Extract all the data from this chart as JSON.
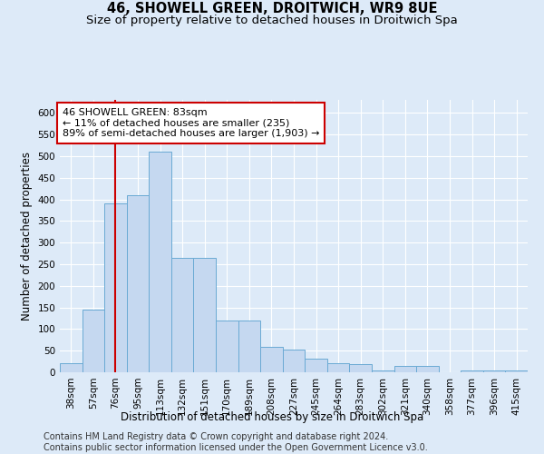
{
  "title": "46, SHOWELL GREEN, DROITWICH, WR9 8UE",
  "subtitle": "Size of property relative to detached houses in Droitwich Spa",
  "xlabel": "Distribution of detached houses by size in Droitwich Spa",
  "ylabel": "Number of detached properties",
  "footer_line1": "Contains HM Land Registry data © Crown copyright and database right 2024.",
  "footer_line2": "Contains public sector information licensed under the Open Government Licence v3.0.",
  "annotation_line1": "46 SHOWELL GREEN: 83sqm",
  "annotation_line2": "← 11% of detached houses are smaller (235)",
  "annotation_line3": "89% of semi-detached houses are larger (1,903) →",
  "bar_values": [
    20,
    145,
    390,
    410,
    510,
    265,
    265,
    120,
    120,
    58,
    52,
    32,
    22,
    18,
    5,
    14,
    14,
    0,
    5,
    5,
    5
  ],
  "bar_labels": [
    "38sqm",
    "57sqm",
    "76sqm",
    "95sqm",
    "113sqm",
    "132sqm",
    "151sqm",
    "170sqm",
    "189sqm",
    "208sqm",
    "227sqm",
    "245sqm",
    "264sqm",
    "283sqm",
    "302sqm",
    "321sqm",
    "340sqm",
    "358sqm",
    "377sqm",
    "396sqm",
    "415sqm"
  ],
  "bar_color": "#c5d8f0",
  "bar_edge_color": "#6aaad4",
  "redline_x": 2.0,
  "ylim": [
    0,
    630
  ],
  "yticks": [
    0,
    50,
    100,
    150,
    200,
    250,
    300,
    350,
    400,
    450,
    500,
    550,
    600
  ],
  "bg_color": "#ddeaf8",
  "plot_bg_color": "#ddeaf8",
  "grid_color": "#ffffff",
  "annotation_box_edge": "#cc0000",
  "annotation_box_bg": "#ffffff",
  "title_fontsize": 10.5,
  "subtitle_fontsize": 9.5,
  "axis_label_fontsize": 8.5,
  "tick_fontsize": 7.5,
  "annotation_fontsize": 8,
  "footer_fontsize": 7
}
